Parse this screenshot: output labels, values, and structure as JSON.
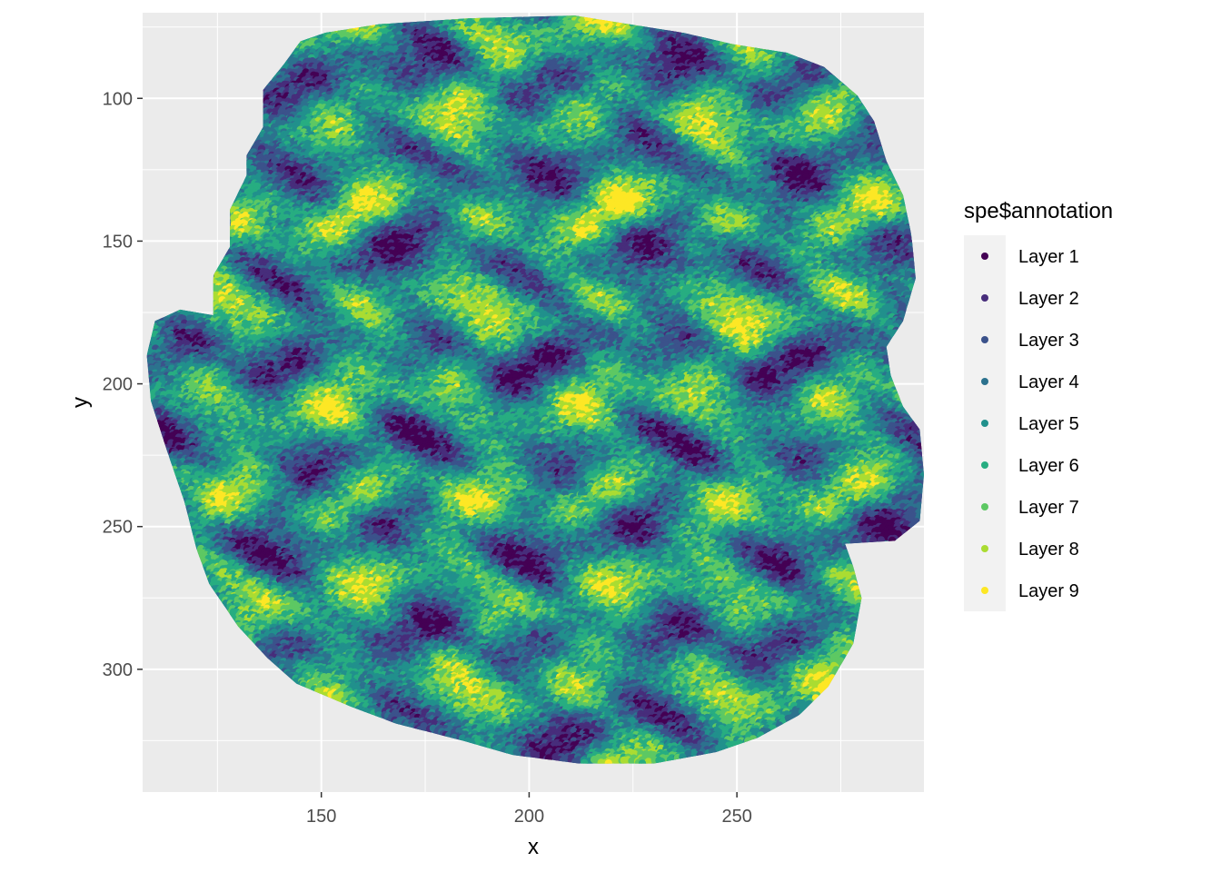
{
  "chart_data": {
    "type": "scatter",
    "title": "",
    "xlabel": "x",
    "ylabel": "y",
    "xlim": [
      107,
      295
    ],
    "ylim": [
      343,
      70
    ],
    "y_reversed": true,
    "x_ticks": [
      150,
      200,
      250
    ],
    "y_ticks": [
      100,
      150,
      200,
      250,
      300
    ],
    "x_tick_labels": [
      "150",
      "200",
      "250"
    ],
    "y_tick_labels": [
      "100",
      "150",
      "200",
      "250",
      "300"
    ],
    "grid": true,
    "panel_background": "#EBEBEB",
    "legend_position": "right",
    "legend_title": "spe$annotation",
    "series": [
      {
        "name": "Layer 1",
        "color": "#440154"
      },
      {
        "name": "Layer 2",
        "color": "#472D7B"
      },
      {
        "name": "Layer 3",
        "color": "#3B528B"
      },
      {
        "name": "Layer 4",
        "color": "#2C728E"
      },
      {
        "name": "Layer 5",
        "color": "#21908C"
      },
      {
        "name": "Layer 6",
        "color": "#27AD81"
      },
      {
        "name": "Layer 7",
        "color": "#5DC863"
      },
      {
        "name": "Layer 8",
        "color": "#AADC32"
      },
      {
        "name": "Layer 9",
        "color": "#FDE725"
      }
    ],
    "tissue_outline": [
      [
        124,
        176
      ],
      [
        124,
        162
      ],
      [
        128,
        152
      ],
      [
        128,
        139
      ],
      [
        132,
        127
      ],
      [
        132,
        120
      ],
      [
        136,
        110
      ],
      [
        136,
        97
      ],
      [
        141,
        88
      ],
      [
        145,
        80
      ],
      [
        151,
        77
      ],
      [
        164,
        74
      ],
      [
        185,
        72
      ],
      [
        211,
        71
      ],
      [
        224,
        74
      ],
      [
        237,
        77
      ],
      [
        249,
        81
      ],
      [
        262,
        84
      ],
      [
        271,
        89
      ],
      [
        279,
        99
      ],
      [
        283,
        108
      ],
      [
        286,
        122
      ],
      [
        290,
        134
      ],
      [
        292,
        148
      ],
      [
        293,
        163
      ],
      [
        290,
        178
      ],
      [
        286,
        187
      ],
      [
        287,
        197
      ],
      [
        290,
        208
      ],
      [
        294,
        216
      ],
      [
        295,
        232
      ],
      [
        294,
        248
      ],
      [
        288,
        255
      ],
      [
        276,
        256
      ],
      [
        278,
        264
      ],
      [
        280,
        275
      ],
      [
        278,
        291
      ],
      [
        272,
        306
      ],
      [
        265,
        316
      ],
      [
        255,
        324
      ],
      [
        245,
        329
      ],
      [
        230,
        333
      ],
      [
        212,
        333
      ],
      [
        196,
        330
      ],
      [
        184,
        325
      ],
      [
        168,
        319
      ],
      [
        157,
        313
      ],
      [
        144,
        305
      ],
      [
        137,
        296
      ],
      [
        130,
        285
      ],
      [
        123,
        270
      ],
      [
        120,
        258
      ],
      [
        117,
        241
      ],
      [
        113,
        224
      ],
      [
        109,
        206
      ],
      [
        108,
        190
      ],
      [
        110,
        178
      ],
      [
        116,
        174
      ]
    ]
  }
}
